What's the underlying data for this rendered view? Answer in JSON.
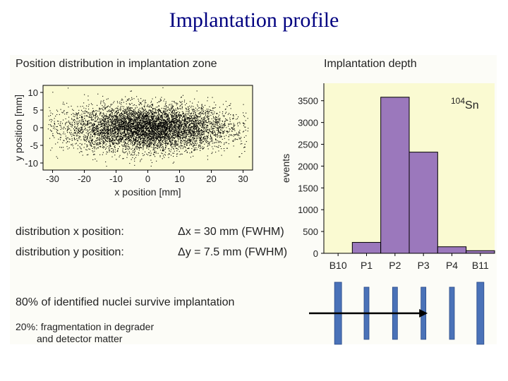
{
  "slide": {
    "title": "Implantation profile",
    "left_heading": "Position distribution in implantation zone",
    "right_heading": "Implantation depth",
    "dist_x_label": "distribution x position:",
    "dist_x_value": "Δx =  30 mm (FWHM)",
    "dist_y_label": "distribution y position:",
    "dist_y_value": "Δy = 7.5 mm (FWHM)",
    "survive": "80% of identified nuclei survive implantation",
    "frag_line1": "20%: fragmentation in degrader",
    "frag_line2": "and detector matter"
  },
  "chart_data": [
    {
      "type": "scatter",
      "title": "Position distribution in implantation zone",
      "xlabel": "x position [mm]",
      "ylabel": "y position [mm]",
      "xlim": [
        -33,
        33
      ],
      "ylim": [
        -12,
        12
      ],
      "xticks": [
        -30,
        -20,
        -10,
        0,
        10,
        20,
        30
      ],
      "yticks": [
        10,
        5,
        0,
        -5,
        -10
      ],
      "distribution": {
        "x_fwhm_mm": 30,
        "y_fwhm_mm": 7.5,
        "x_center": 0,
        "y_center": 0
      },
      "grid": false
    },
    {
      "type": "bar",
      "title": "Implantation depth",
      "ylabel": "events",
      "categories": [
        "B10",
        "P1",
        "P2",
        "P3",
        "P4",
        "B11"
      ],
      "values": [
        0,
        250,
        3580,
        2320,
        150,
        60
      ],
      "ylim": [
        0,
        3900
      ],
      "yticks": [
        0,
        500,
        1000,
        1500,
        2000,
        2500,
        3000,
        3500
      ],
      "annotation": {
        "base": "Sn",
        "superscript": "104"
      },
      "bar_color": "#9b78bc",
      "background": "#fafad2"
    }
  ],
  "detector_diagram": {
    "detectors": [
      "B10",
      "P1",
      "P2",
      "P3",
      "P4",
      "B11"
    ],
    "color": "#4a72b8"
  }
}
